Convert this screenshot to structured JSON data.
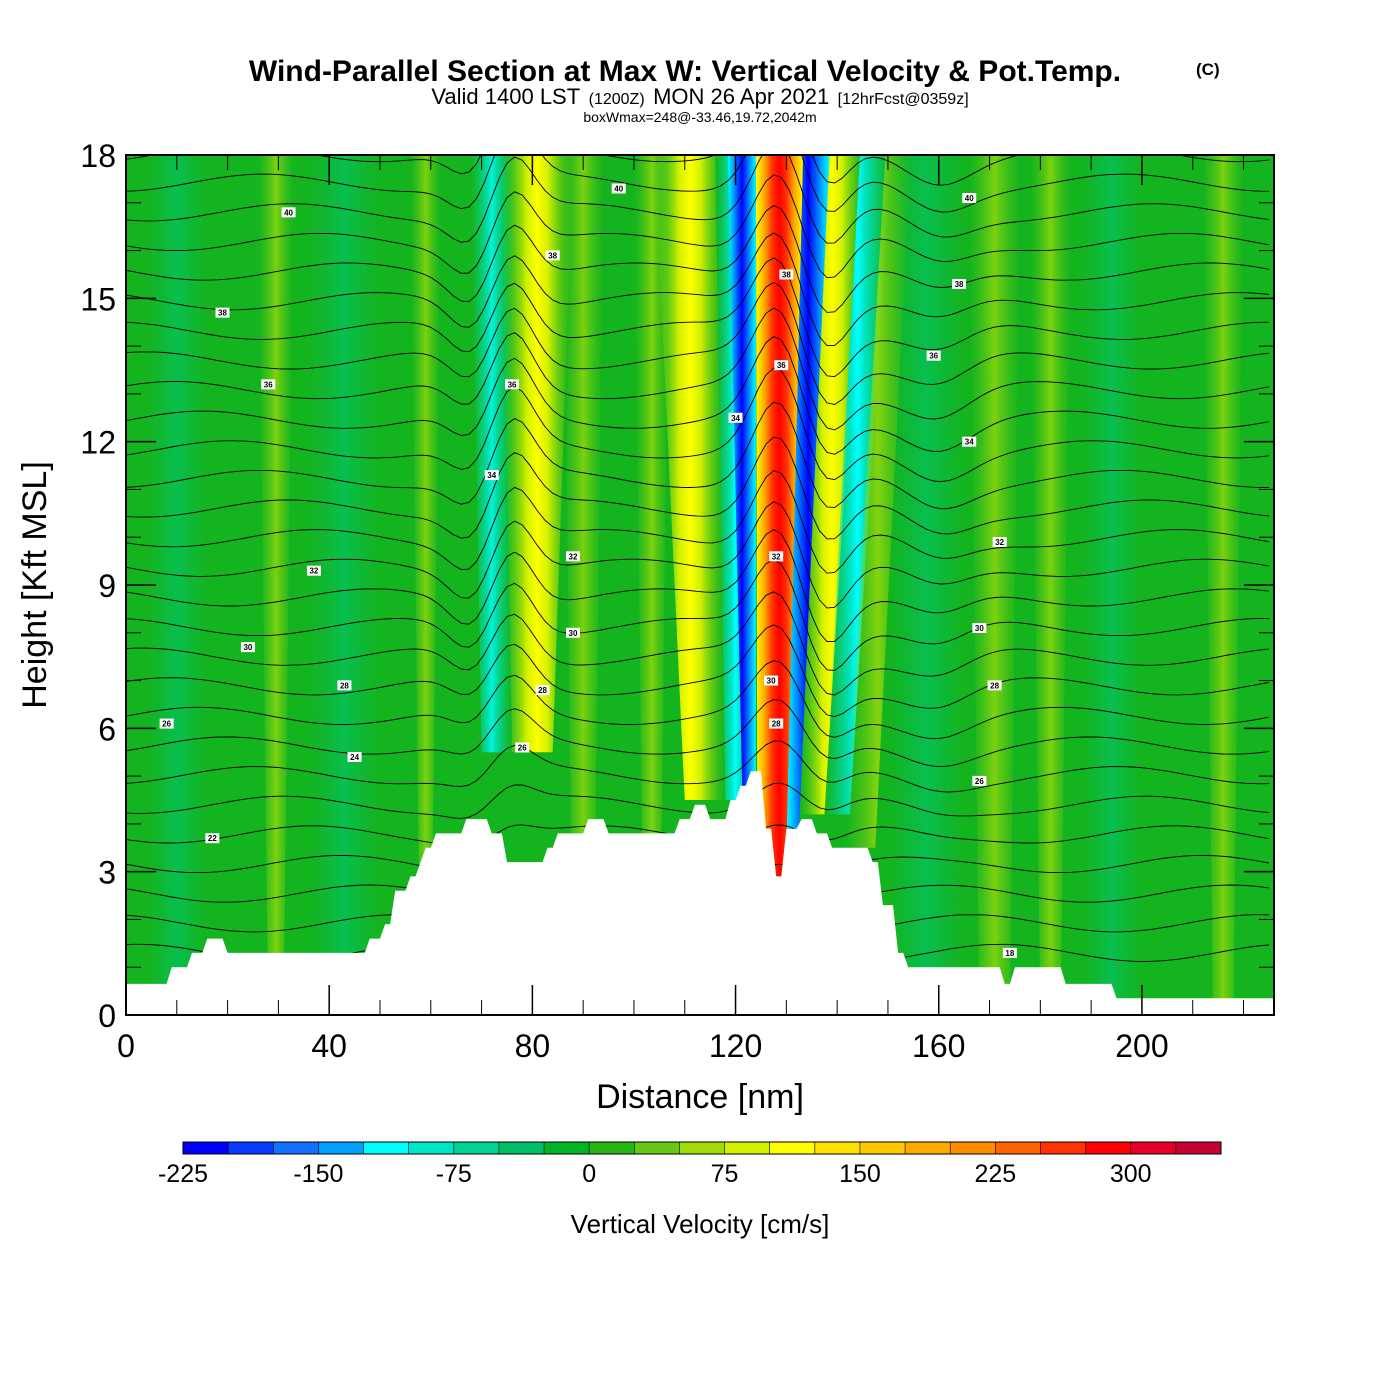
{
  "title": {
    "main": "Wind-Parallel Section at Max W: Vertical Velocity & Pot.Temp.",
    "copyright": "(C)",
    "valid_a": "Valid 1400 LST",
    "valid_b": "(1200Z)",
    "valid_c": "MON 26 Apr 2021",
    "valid_d": "[12hrFcst@0359z]",
    "boxline": "boxWmax=248@-33.46,19.72,2042m"
  },
  "chart_data": {
    "type": "heatmap",
    "xlabel": "Distance [nm]",
    "ylabel": "Height [Kft MSL]",
    "xlim": [
      0,
      226
    ],
    "ylim": [
      0,
      18
    ],
    "x_ticks": [
      0,
      40,
      80,
      120,
      160,
      200
    ],
    "y_ticks": [
      0,
      3,
      6,
      9,
      12,
      15,
      18
    ],
    "updraft_axis": {
      "x_at_top": 130.5,
      "x_at_4kft": 127.5
    },
    "max_updraft_cms": 248,
    "colorbar": {
      "title": "Vertical Velocity [cm/s]",
      "tick_labels": [
        "-225",
        "-150",
        "-75",
        "0",
        "75",
        "150",
        "225",
        "300"
      ],
      "bounds": [
        -225,
        350
      ],
      "step": 25,
      "colors": [
        "#0000ff",
        "#0a3cff",
        "#1470ff",
        "#00a0ff",
        "#00ffff",
        "#00e6c8",
        "#00d296",
        "#00be64",
        "#00b428",
        "#28b414",
        "#64c814",
        "#a0dc0a",
        "#d2f000",
        "#ffff00",
        "#ffe100",
        "#ffc800",
        "#ffaa00",
        "#ff8c00",
        "#ff6400",
        "#ff3200",
        "#ff0000",
        "#e60028",
        "#c80032"
      ]
    },
    "terrain_kft": [
      [
        0,
        0.65
      ],
      [
        8,
        0.65
      ],
      [
        9,
        1.0
      ],
      [
        12,
        1.0
      ],
      [
        13,
        1.3
      ],
      [
        15,
        1.3
      ],
      [
        16,
        1.6
      ],
      [
        19,
        1.6
      ],
      [
        20,
        1.3
      ],
      [
        47,
        1.3
      ],
      [
        48,
        1.6
      ],
      [
        50,
        1.6
      ],
      [
        51,
        1.9
      ],
      [
        52,
        1.9
      ],
      [
        53,
        2.6
      ],
      [
        55,
        2.6
      ],
      [
        56,
        2.9
      ],
      [
        57,
        2.9
      ],
      [
        58,
        3.2
      ],
      [
        59,
        3.5
      ],
      [
        60,
        3.5
      ],
      [
        61,
        3.8
      ],
      [
        66,
        3.8
      ],
      [
        67,
        4.1
      ],
      [
        71,
        4.1
      ],
      [
        72,
        3.8
      ],
      [
        74,
        3.8
      ],
      [
        75,
        3.2
      ],
      [
        82,
        3.2
      ],
      [
        83,
        3.5
      ],
      [
        84,
        3.5
      ],
      [
        85,
        3.8
      ],
      [
        90,
        3.8
      ],
      [
        91,
        4.1
      ],
      [
        94,
        4.1
      ],
      [
        95,
        3.8
      ],
      [
        108,
        3.8
      ],
      [
        109,
        4.1
      ],
      [
        111,
        4.1
      ],
      [
        112,
        4.4
      ],
      [
        114,
        4.4
      ],
      [
        115,
        4.1
      ],
      [
        118,
        4.1
      ],
      [
        119,
        4.5
      ],
      [
        120,
        4.5
      ],
      [
        121,
        4.8
      ],
      [
        122,
        4.8
      ],
      [
        123,
        5.1
      ],
      [
        125,
        5.1
      ],
      [
        126,
        3.9
      ],
      [
        127,
        3.9
      ],
      [
        128,
        2.9
      ],
      [
        129,
        2.9
      ],
      [
        130,
        3.9
      ],
      [
        132,
        3.9
      ],
      [
        133,
        4.1
      ],
      [
        135,
        4.1
      ],
      [
        136,
        3.8
      ],
      [
        138,
        3.8
      ],
      [
        139,
        3.5
      ],
      [
        146,
        3.5
      ],
      [
        147,
        3.2
      ],
      [
        148,
        3.2
      ],
      [
        149,
        2.3
      ],
      [
        151,
        2.3
      ],
      [
        152,
        1.3
      ],
      [
        153,
        1.3
      ],
      [
        154,
        1.0
      ],
      [
        172,
        1.0
      ],
      [
        173,
        0.65
      ],
      [
        174,
        0.65
      ],
      [
        175,
        1.0
      ],
      [
        184,
        1.0
      ],
      [
        185,
        0.65
      ],
      [
        194,
        0.65
      ],
      [
        195,
        0.35
      ],
      [
        226,
        0.35
      ]
    ],
    "theta_contour_labels": [
      {
        "text": "40",
        "x": 32,
        "y": 16.8
      },
      {
        "text": "40",
        "x": 97,
        "y": 17.3
      },
      {
        "text": "40",
        "x": 166,
        "y": 17.1
      },
      {
        "text": "38",
        "x": 19,
        "y": 14.7
      },
      {
        "text": "38",
        "x": 84,
        "y": 15.9
      },
      {
        "text": "38",
        "x": 130,
        "y": 15.5
      },
      {
        "text": "38",
        "x": 164,
        "y": 15.3
      },
      {
        "text": "36",
        "x": 28,
        "y": 13.2
      },
      {
        "text": "36",
        "x": 76,
        "y": 13.2
      },
      {
        "text": "36",
        "x": 159,
        "y": 13.8
      },
      {
        "text": "36",
        "x": 129,
        "y": 13.6
      },
      {
        "text": "34",
        "x": 72,
        "y": 11.3
      },
      {
        "text": "34",
        "x": 120,
        "y": 12.5
      },
      {
        "text": "34",
        "x": 166,
        "y": 12.0
      },
      {
        "text": "32",
        "x": 37,
        "y": 9.3
      },
      {
        "text": "32",
        "x": 88,
        "y": 9.6
      },
      {
        "text": "32",
        "x": 128,
        "y": 9.6
      },
      {
        "text": "32",
        "x": 172,
        "y": 9.9
      },
      {
        "text": "30",
        "x": 24,
        "y": 7.7
      },
      {
        "text": "30",
        "x": 88,
        "y": 8.0
      },
      {
        "text": "30",
        "x": 168,
        "y": 8.1
      },
      {
        "text": "30",
        "x": 127,
        "y": 7.0
      },
      {
        "text": "28",
        "x": 43,
        "y": 6.9
      },
      {
        "text": "28",
        "x": 82,
        "y": 6.8
      },
      {
        "text": "28",
        "x": 171,
        "y": 6.9
      },
      {
        "text": "28",
        "x": 128,
        "y": 6.1
      },
      {
        "text": "26",
        "x": 8,
        "y": 6.1
      },
      {
        "text": "26",
        "x": 78,
        "y": 5.6
      },
      {
        "text": "26",
        "x": 168,
        "y": 4.9
      },
      {
        "text": "24",
        "x": 45,
        "y": 5.4
      },
      {
        "text": "22",
        "x": 17,
        "y": 3.7
      },
      {
        "text": "18",
        "x": 174,
        "y": 1.3
      }
    ]
  }
}
